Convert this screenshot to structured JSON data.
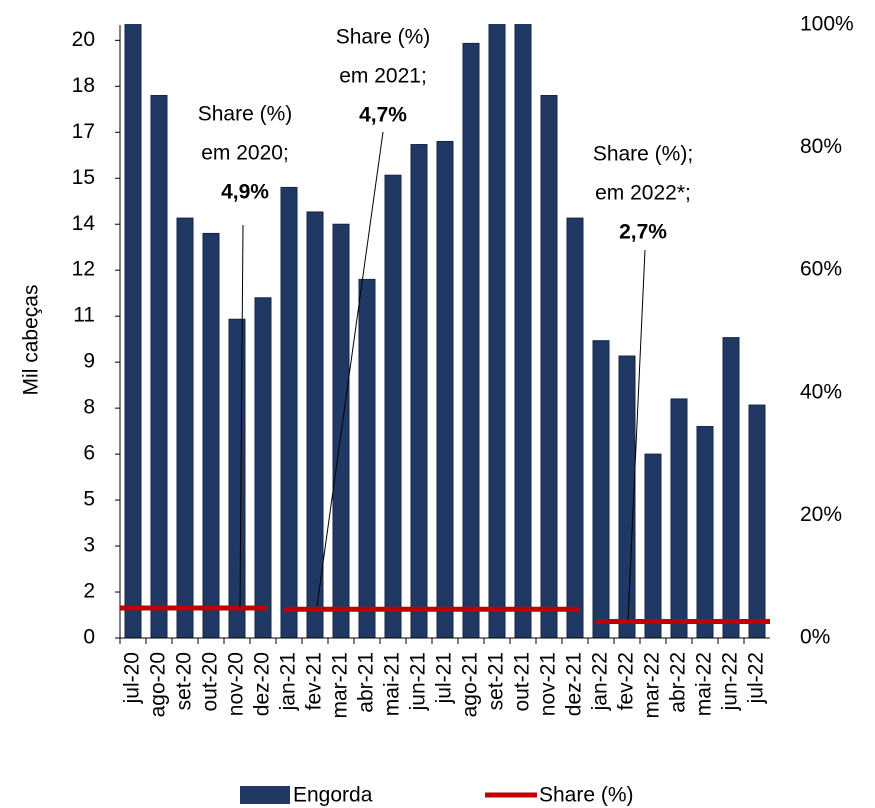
{
  "chart_data": {
    "type": "bar",
    "y_axis_label": "Mil cabeças",
    "categories": [
      "jul-20",
      "ago-20",
      "set-20",
      "out-20",
      "nov-20",
      "dez-20",
      "jan-21",
      "fev-21",
      "mar-21",
      "abr-21",
      "mai-21",
      "jun-21",
      "jul-21",
      "ago-21",
      "set-21",
      "out-21",
      "nov-21",
      "dez-21",
      "jan-22",
      "fev-22",
      "mar-22",
      "abr-22",
      "mai-22",
      "jun-22",
      "jul-22"
    ],
    "series": [
      {
        "name": "Engorda",
        "color": "#203864",
        "values": [
          21,
          17.7,
          13.7,
          13.2,
          10.4,
          11.1,
          14.7,
          13.9,
          13.5,
          11.7,
          15.1,
          16.1,
          16.2,
          19.4,
          21,
          21,
          17.7,
          13.7,
          9.7,
          9.2,
          6.0,
          7.8,
          6.9,
          9.8,
          7.6
        ]
      },
      {
        "name": "Share (%)",
        "color": "#c00000",
        "axis": "y2",
        "values": [
          4.9,
          4.9,
          4.9,
          4.9,
          4.9,
          4.9,
          4.7,
          4.7,
          4.7,
          4.7,
          4.7,
          4.7,
          4.7,
          4.7,
          4.7,
          4.7,
          4.7,
          4.7,
          2.7,
          2.7,
          2.7,
          2.7,
          2.7,
          2.7,
          2.7
        ]
      }
    ],
    "ylim": [
      0,
      20
    ],
    "yticks": [
      0,
      {
        "value": 1.5,
        "label": "2"
      },
      3,
      {
        "value": 4.5,
        "label": "5"
      },
      6,
      {
        "value": 7.5,
        "label": "8"
      },
      9,
      {
        "value": 10.5,
        "label": "11"
      },
      12,
      {
        "value": 13.5,
        "label": "14"
      },
      15,
      {
        "value": 16.5,
        "label": "17"
      },
      18,
      {
        "value": 19.5,
        "label": "20"
      }
    ],
    "y2lim": [
      0,
      100
    ],
    "y2ticks": [
      {
        "value": 0,
        "label": "0%"
      },
      {
        "value": 20,
        "label": "20%"
      },
      {
        "value": 40,
        "label": "40%"
      },
      {
        "value": 60,
        "label": "60%"
      },
      {
        "value": 80,
        "label": "80%"
      },
      {
        "value": 100,
        "label": "100%"
      }
    ],
    "annotations": [
      {
        "lines": [
          "Share (%)",
          "em 2020;"
        ],
        "value": "4,9%"
      },
      {
        "lines": [
          "Share (%)",
          "em 2021;"
        ],
        "value": "4,7%"
      },
      {
        "lines": [
          "Share (%);",
          "em 2022*;"
        ],
        "value": "2,7%"
      }
    ],
    "legend": "bottom"
  }
}
